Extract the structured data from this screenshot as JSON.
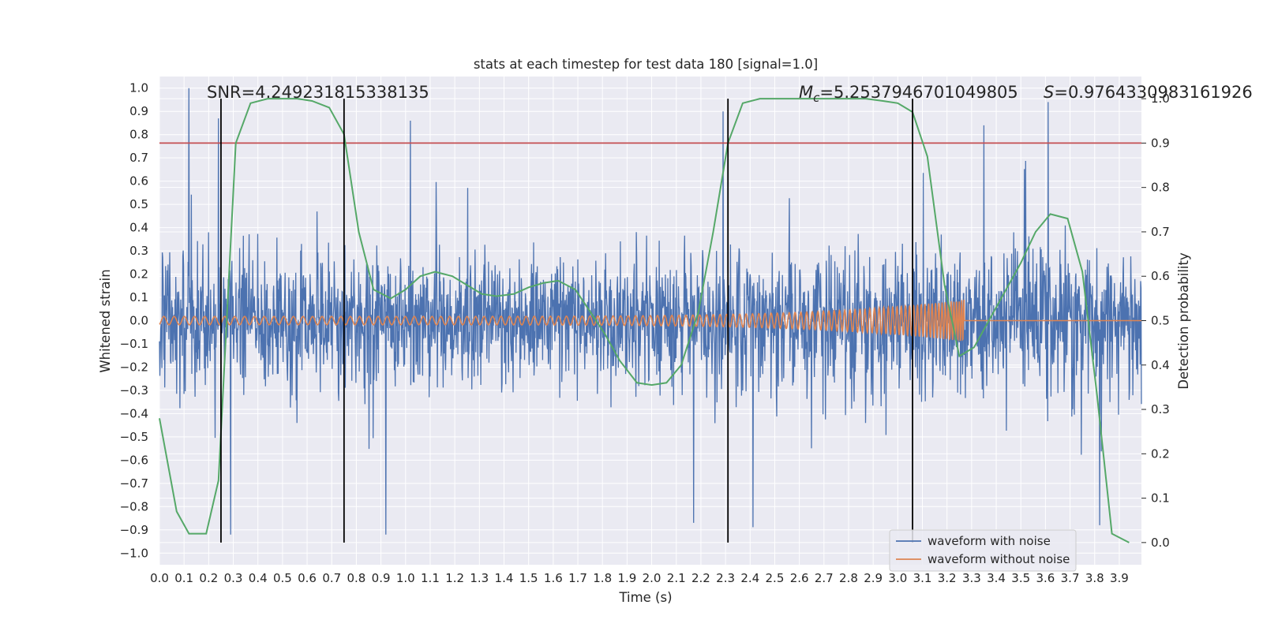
{
  "chart_data": {
    "type": "line",
    "title": "stats at each timestep for test data 180 [signal=1.0]",
    "xlabel": "Time (s)",
    "ylabel": "Whitened strain",
    "y2label": "Detection probability",
    "xlim": [
      0.0,
      3.99
    ],
    "ylim": [
      -1.05,
      1.05
    ],
    "y2lim": [
      -0.05,
      1.05
    ],
    "x_ticks": [
      "0.0",
      "0.1",
      "0.2",
      "0.3",
      "0.4",
      "0.5",
      "0.6",
      "0.7",
      "0.8",
      "0.9",
      "1.0",
      "1.1",
      "1.2",
      "1.3",
      "1.4",
      "1.5",
      "1.6",
      "1.7",
      "1.8",
      "1.9",
      "2.0",
      "2.1",
      "2.2",
      "2.3",
      "2.4",
      "2.5",
      "2.6",
      "2.7",
      "2.8",
      "2.9",
      "3.0",
      "3.1",
      "3.2",
      "3.3",
      "3.4",
      "3.5",
      "3.6",
      "3.7",
      "3.8",
      "3.9"
    ],
    "y_ticks": [
      "1.0",
      "0.9",
      "0.8",
      "0.7",
      "0.6",
      "0.5",
      "0.4",
      "0.3",
      "0.2",
      "0.1",
      "0.0",
      "−0.1",
      "−0.2",
      "−0.3",
      "−0.4",
      "−0.5",
      "−0.6",
      "−0.7",
      "−0.8",
      "−0.9",
      "−1.0"
    ],
    "y2_ticks": [
      "1.0",
      "0.9",
      "0.8",
      "0.7",
      "0.6",
      "0.5",
      "0.4",
      "0.3",
      "0.2",
      "0.1",
      "0.0"
    ],
    "grid": true,
    "legend_position": "lower-right",
    "annotations": {
      "snr": "SNR=4.249231815338135",
      "mc_symbol": "M",
      "mc_sub": "c",
      "mc_value": "=5.2537946701049805",
      "s_symbol": "S",
      "s_value": "=0.9764330983161926"
    },
    "threshold_y2": 0.9,
    "vertical_lines_x": [
      0.25,
      0.75,
      2.31,
      3.06
    ],
    "series": [
      {
        "name": "waveform with noise",
        "color": "#4c72b0",
        "axis": "left",
        "kind": "noise",
        "amplitude_envelope": 0.55,
        "spikes": [
          [
            0.12,
            1.0
          ],
          [
            0.24,
            0.87
          ],
          [
            0.29,
            -0.92
          ],
          [
            0.92,
            -0.92
          ],
          [
            1.02,
            0.86
          ],
          [
            2.29,
            0.9
          ],
          [
            3.35,
            0.84
          ],
          [
            3.61,
            0.94
          ],
          [
            3.82,
            -0.88
          ],
          [
            2.17,
            -0.87
          ]
        ]
      },
      {
        "name": "waveform without noise",
        "color": "#dd8452",
        "axis": "left",
        "kind": "chirp",
        "t_start": 0.0,
        "t_merge": 3.27,
        "amplitude_start": 0.018,
        "amplitude_merge": 0.09
      },
      {
        "name": "detection probability",
        "color": "#55a868",
        "axis": "right",
        "x": [
          0.0,
          0.07,
          0.12,
          0.19,
          0.24,
          0.31,
          0.37,
          0.44,
          0.5,
          0.56,
          0.62,
          0.69,
          0.75,
          0.81,
          0.87,
          0.94,
          1.0,
          1.06,
          1.12,
          1.19,
          1.25,
          1.31,
          1.37,
          1.44,
          1.5,
          1.56,
          1.62,
          1.69,
          1.75,
          1.81,
          1.87,
          1.94,
          2.0,
          2.06,
          2.12,
          2.19,
          2.25,
          2.31,
          2.37,
          2.44,
          2.5,
          2.56,
          2.62,
          2.69,
          2.75,
          2.81,
          2.87,
          2.94,
          3.0,
          3.06,
          3.12,
          3.19,
          3.25,
          3.31,
          3.37,
          3.44,
          3.5,
          3.56,
          3.62,
          3.69,
          3.75,
          3.81,
          3.87,
          3.94
        ],
        "values": [
          0.28,
          0.07,
          0.02,
          0.02,
          0.14,
          0.9,
          0.99,
          1.0,
          1.0,
          1.0,
          0.995,
          0.98,
          0.92,
          0.7,
          0.57,
          0.55,
          0.57,
          0.6,
          0.61,
          0.6,
          0.58,
          0.56,
          0.555,
          0.56,
          0.575,
          0.585,
          0.59,
          0.57,
          0.52,
          0.47,
          0.41,
          0.36,
          0.355,
          0.36,
          0.4,
          0.52,
          0.7,
          0.9,
          0.99,
          1.0,
          1.0,
          1.0,
          1.0,
          1.0,
          1.0,
          1.0,
          1.0,
          0.995,
          0.99,
          0.97,
          0.87,
          0.58,
          0.42,
          0.44,
          0.5,
          0.57,
          0.63,
          0.7,
          0.74,
          0.73,
          0.61,
          0.33,
          0.02,
          0.0
        ]
      }
    ]
  },
  "colors": {
    "background": "#ffffff",
    "plot_bg": "#eaeaf2",
    "grid": "#ffffff",
    "threshold": "#c44e52",
    "vlines": "#000000"
  }
}
